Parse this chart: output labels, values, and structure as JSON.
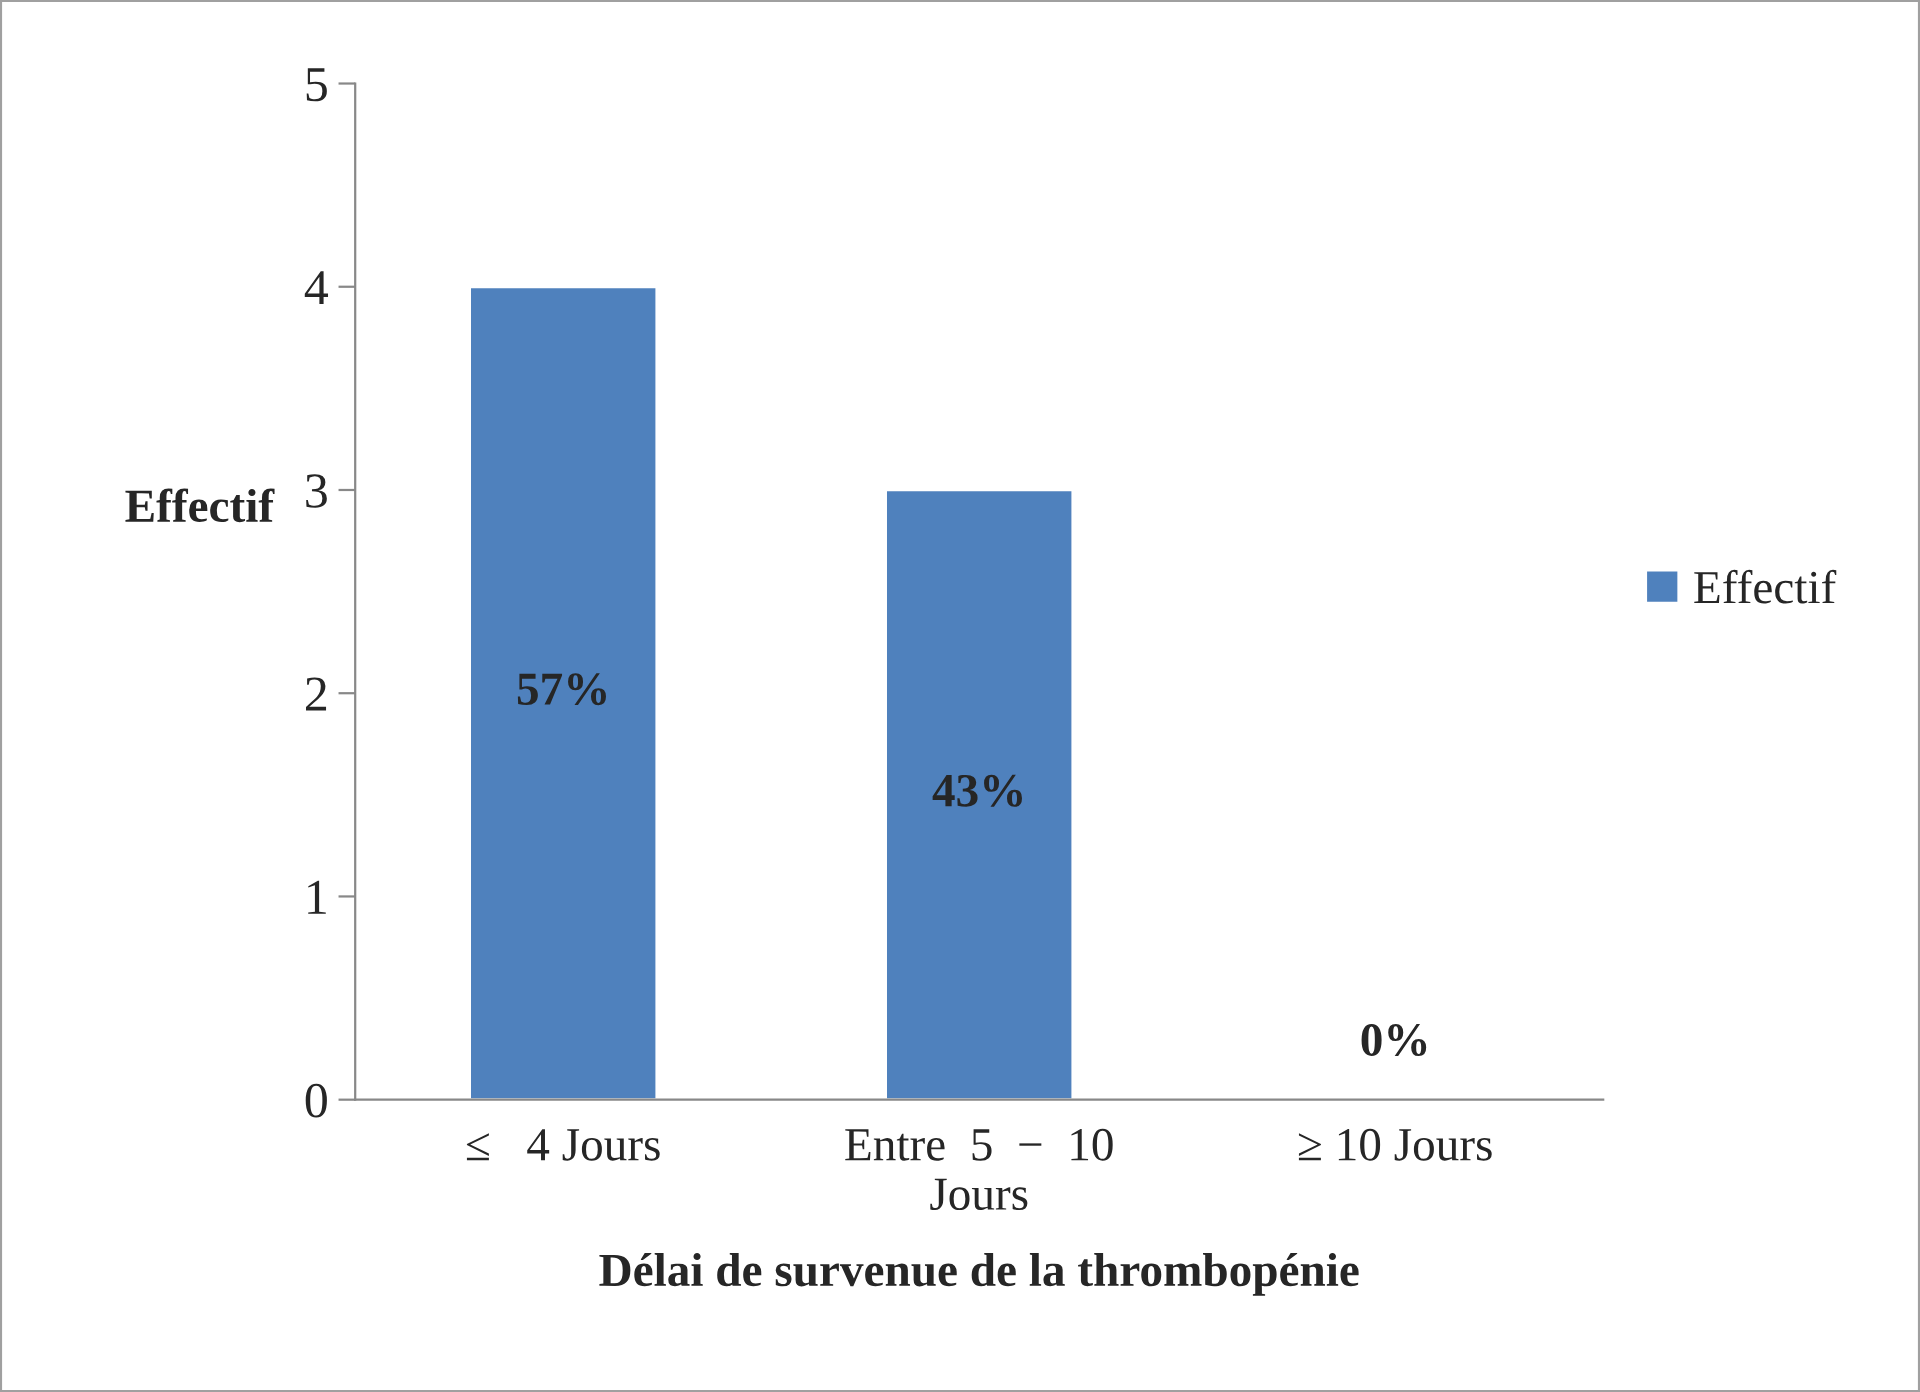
{
  "chart_data": {
    "type": "bar",
    "xlabel": "Délai de survenue de la thrombopénie",
    "ylabel": "Effectif",
    "categories": [
      "≤   4 Jours",
      "Entre  5  −  10\nJours",
      "≥ 10 Jours"
    ],
    "series": [
      {
        "name": "Effectif",
        "color": "#4f81bd",
        "values": [
          4,
          3,
          0
        ]
      }
    ],
    "annotations": [
      "57%",
      "43%",
      "0%"
    ],
    "ylim": [
      0,
      5
    ],
    "yticks": [
      0,
      1,
      2,
      3,
      4,
      5
    ],
    "grid": false,
    "legend": "right"
  }
}
